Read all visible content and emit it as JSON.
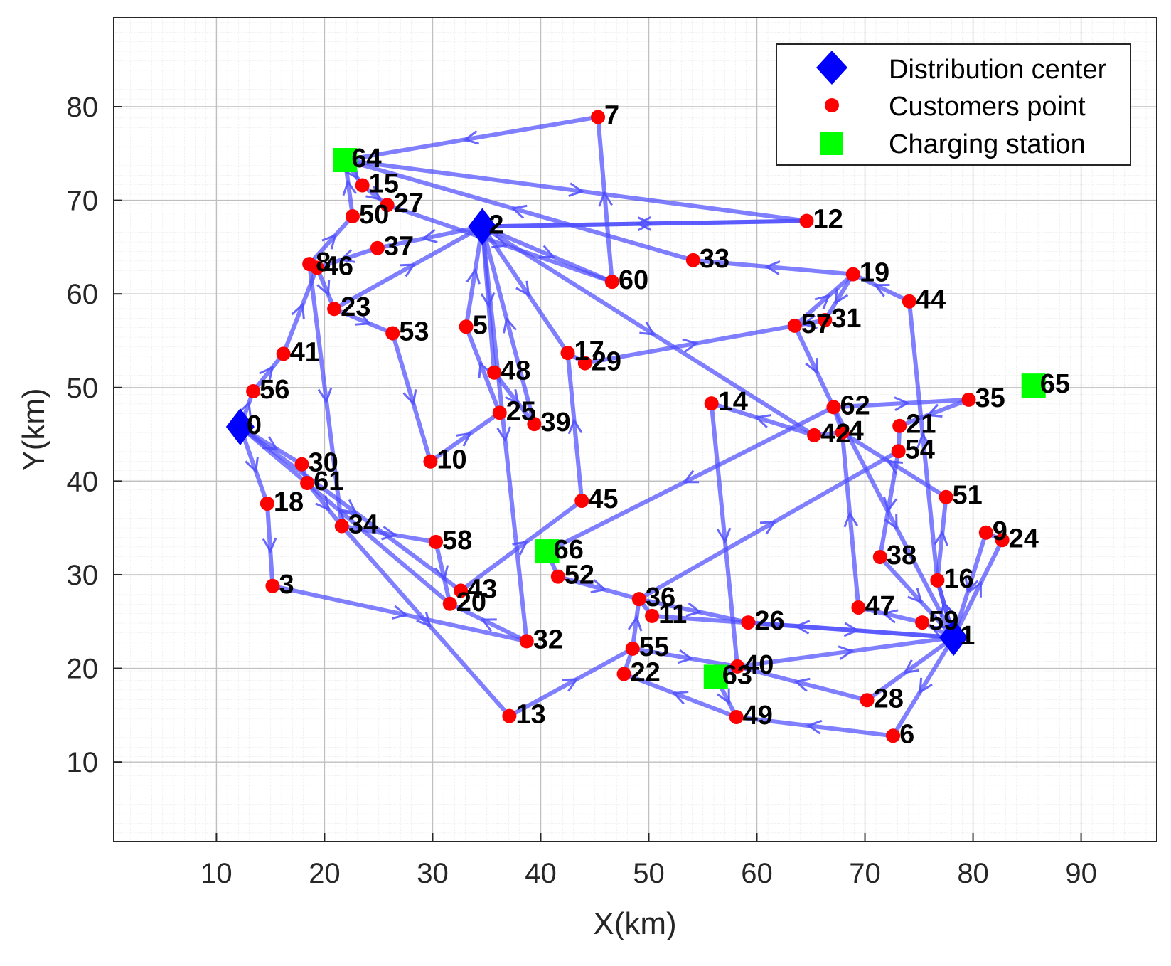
{
  "chart_data": {
    "type": "scatter",
    "title": "",
    "xlabel": "X(km)",
    "ylabel": "Y(km)",
    "xlim": [
      0.5,
      97
    ],
    "ylim": [
      1.5,
      89.5
    ],
    "xticks": [
      10,
      20,
      30,
      40,
      50,
      60,
      70,
      80,
      90
    ],
    "yticks": [
      10,
      20,
      30,
      40,
      50,
      60,
      70,
      80
    ],
    "grid": true,
    "legend_position": "top-right",
    "legend": [
      {
        "key": "depot",
        "label": "Distribution center"
      },
      {
        "key": "customer",
        "label": "Customers point"
      },
      {
        "key": "station",
        "label": "Charging station"
      }
    ],
    "colors": {
      "depot": "#0000ff",
      "customer": "#ff0000",
      "station": "#00ff00",
      "route": "#4d4dff"
    },
    "depots": [
      {
        "id": "0",
        "x": 12.2,
        "y": 45.8
      },
      {
        "id": "1",
        "x": 78.2,
        "y": 23.3
      },
      {
        "id": "2",
        "x": 34.6,
        "y": 67.2
      }
    ],
    "stations": [
      {
        "id": "63",
        "x": 56.2,
        "y": 19.1
      },
      {
        "id": "64",
        "x": 21.9,
        "y": 74.3
      },
      {
        "id": "65",
        "x": 85.6,
        "y": 50.2
      },
      {
        "id": "66",
        "x": 40.6,
        "y": 32.5
      }
    ],
    "customers": [
      {
        "id": "3",
        "x": 15.2,
        "y": 28.8
      },
      {
        "id": "4",
        "x": 67.9,
        "y": 45.2
      },
      {
        "id": "5",
        "x": 33.1,
        "y": 56.5
      },
      {
        "id": "6",
        "x": 72.6,
        "y": 12.8
      },
      {
        "id": "7",
        "x": 45.3,
        "y": 78.9
      },
      {
        "id": "8",
        "x": 18.6,
        "y": 63.2
      },
      {
        "id": "9",
        "x": 81.2,
        "y": 34.5
      },
      {
        "id": "10",
        "x": 29.8,
        "y": 42.1
      },
      {
        "id": "11",
        "x": 50.3,
        "y": 25.6
      },
      {
        "id": "12",
        "x": 64.6,
        "y": 67.8
      },
      {
        "id": "13",
        "x": 37.1,
        "y": 14.9
      },
      {
        "id": "14",
        "x": 55.8,
        "y": 48.3
      },
      {
        "id": "15",
        "x": 23.5,
        "y": 71.6
      },
      {
        "id": "16",
        "x": 76.7,
        "y": 29.4
      },
      {
        "id": "17",
        "x": 42.5,
        "y": 53.7
      },
      {
        "id": "18",
        "x": 14.7,
        "y": 37.6
      },
      {
        "id": "19",
        "x": 68.9,
        "y": 62.1
      },
      {
        "id": "20",
        "x": 31.6,
        "y": 26.9
      },
      {
        "id": "21",
        "x": 73.2,
        "y": 45.9
      },
      {
        "id": "22",
        "x": 47.7,
        "y": 19.4
      },
      {
        "id": "23",
        "x": 20.9,
        "y": 58.4
      },
      {
        "id": "24",
        "x": 82.7,
        "y": 33.7
      },
      {
        "id": "25",
        "x": 36.2,
        "y": 47.3
      },
      {
        "id": "26",
        "x": 59.2,
        "y": 24.9
      },
      {
        "id": "27",
        "x": 25.8,
        "y": 69.5
      },
      {
        "id": "28",
        "x": 70.2,
        "y": 16.6
      },
      {
        "id": "29",
        "x": 44.1,
        "y": 52.6
      },
      {
        "id": "30",
        "x": 17.9,
        "y": 41.8
      },
      {
        "id": "31",
        "x": 66.3,
        "y": 57.2
      },
      {
        "id": "32",
        "x": 38.7,
        "y": 22.9
      },
      {
        "id": "33",
        "x": 54.1,
        "y": 63.6
      },
      {
        "id": "34",
        "x": 21.6,
        "y": 35.2
      },
      {
        "id": "35",
        "x": 79.6,
        "y": 48.7
      },
      {
        "id": "36",
        "x": 49.1,
        "y": 27.4
      },
      {
        "id": "37",
        "x": 24.9,
        "y": 64.9
      },
      {
        "id": "38",
        "x": 71.4,
        "y": 31.9
      },
      {
        "id": "39",
        "x": 39.4,
        "y": 46.1
      },
      {
        "id": "40",
        "x": 58.2,
        "y": 20.2
      },
      {
        "id": "41",
        "x": 16.2,
        "y": 53.6
      },
      {
        "id": "42",
        "x": 65.3,
        "y": 44.9
      },
      {
        "id": "43",
        "x": 32.6,
        "y": 28.3
      },
      {
        "id": "44",
        "x": 74.1,
        "y": 59.2
      },
      {
        "id": "45",
        "x": 43.8,
        "y": 37.9
      },
      {
        "id": "46",
        "x": 19.3,
        "y": 62.8
      },
      {
        "id": "47",
        "x": 69.4,
        "y": 26.5
      },
      {
        "id": "48",
        "x": 35.7,
        "y": 51.6
      },
      {
        "id": "49",
        "x": 58.1,
        "y": 14.8
      },
      {
        "id": "50",
        "x": 22.6,
        "y": 68.3
      },
      {
        "id": "51",
        "x": 77.5,
        "y": 38.3
      },
      {
        "id": "52",
        "x": 41.6,
        "y": 29.8
      },
      {
        "id": "53",
        "x": 26.3,
        "y": 55.8
      },
      {
        "id": "54",
        "x": 73.1,
        "y": 43.2
      },
      {
        "id": "55",
        "x": 48.5,
        "y": 22.1
      },
      {
        "id": "56",
        "x": 13.4,
        "y": 49.6
      },
      {
        "id": "57",
        "x": 63.5,
        "y": 56.6
      },
      {
        "id": "58",
        "x": 30.3,
        "y": 33.5
      },
      {
        "id": "59",
        "x": 75.3,
        "y": 24.9
      },
      {
        "id": "60",
        "x": 46.6,
        "y": 61.3
      },
      {
        "id": "61",
        "x": 18.4,
        "y": 39.8
      },
      {
        "id": "62",
        "x": 67.1,
        "y": 47.9
      }
    ],
    "routes": [
      [
        "0",
        "56",
        "41",
        "46",
        "8",
        "50",
        "64",
        "15",
        "27",
        "60",
        "7",
        "64",
        "12",
        "2"
      ],
      [
        "2",
        "37",
        "46",
        "23",
        "53",
        "10",
        "25",
        "5",
        "2"
      ],
      [
        "2",
        "48",
        "39",
        "2"
      ],
      [
        "2",
        "17",
        "29",
        "57",
        "19",
        "33",
        "64"
      ],
      [
        "2",
        "12"
      ],
      [
        "2",
        "32",
        "20",
        "0"
      ],
      [
        "2",
        "60"
      ],
      [
        "0",
        "18",
        "3",
        "32"
      ],
      [
        "0",
        "43",
        "45",
        "17"
      ],
      [
        "0",
        "30",
        "61",
        "34",
        "13",
        "55",
        "40",
        "63",
        "49",
        "22",
        "55",
        "36",
        "26",
        "1"
      ],
      [
        "8",
        "34",
        "58",
        "20"
      ],
      [
        "23",
        "2"
      ],
      [
        "1",
        "59",
        "47",
        "4",
        "62",
        "35",
        "21",
        "54",
        "38",
        "1"
      ],
      [
        "1",
        "16",
        "51",
        "4",
        "42",
        "14",
        "40",
        "1"
      ],
      [
        "1",
        "6",
        "49"
      ],
      [
        "1",
        "28",
        "40"
      ],
      [
        "1",
        "24",
        "9",
        "1"
      ],
      [
        "1",
        "11",
        "36",
        "54"
      ],
      [
        "1",
        "16",
        "44",
        "19",
        "31",
        "57",
        "62",
        "1"
      ],
      [
        "62",
        "66",
        "52",
        "36"
      ],
      [
        "2",
        "42"
      ]
    ]
  }
}
